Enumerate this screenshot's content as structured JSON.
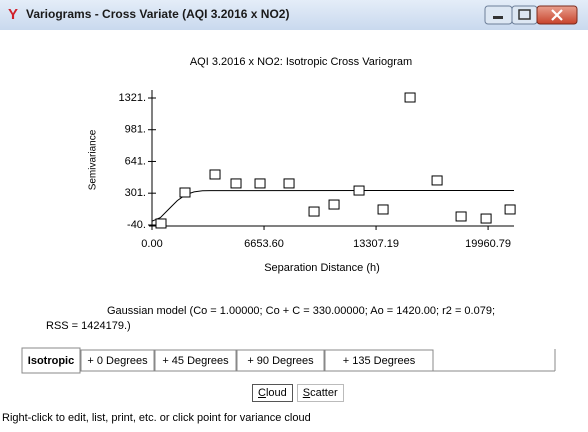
{
  "window": {
    "title": "Variograms - Cross Variate (AQI 3.2016 x NO2)"
  },
  "chart_data": {
    "type": "scatter",
    "title": "AQI 3.2016 x NO2: Isotropic Cross Variogram",
    "x_label": "Separation Distance (h)",
    "y_label": "Semivariance",
    "marker": "square",
    "x": [
      535,
      1960,
      3743,
      4990,
      6416,
      8139,
      9624,
      10812,
      12297,
      13723,
      15327,
      16931,
      18357,
      19842,
      21268
    ],
    "values": [
      -29,
      303,
      496,
      400,
      400,
      400,
      99,
      174,
      324,
      121,
      1321,
      432,
      46,
      24,
      121
    ],
    "model": {
      "x": [
        0,
        500,
        1000,
        1500,
        2000,
        2500,
        3000,
        3500,
        21500
      ],
      "values": [
        1,
        39,
        130,
        222,
        285,
        315,
        326,
        329,
        330
      ]
    },
    "xlim": [
      0,
      21500
    ],
    "ylim": [
      -40,
      1321
    ],
    "xticks": [
      {
        "value": 0,
        "label": "0.00"
      },
      {
        "value": 6653.6,
        "label": "6653.60"
      },
      13307.19,
      19960.79
    ],
    "yticks": [
      {
        "value": -40,
        "label": "-40."
      },
      {
        "value": 301,
        "label": "301."
      },
      {
        "value": 641,
        "label": "641."
      },
      {
        "value": 981,
        "label": "981."
      },
      {
        "value": 1321,
        "label": "1321."
      }
    ]
  },
  "model_text": [
    "Gaussian model (Co = 1.00000; Co + C = 330.00000; Ao = 1420.00; r2 = 0.079;",
    "RSS = 1424179.)"
  ],
  "tabs": [
    "Isotropic",
    "+ 0 Degrees",
    "+ 45 Degrees",
    "+ 90 Degrees",
    "+ 135 Degrees"
  ],
  "buttons": [
    "Cloud",
    "Scatter"
  ],
  "status": "Right-click to edit, list, print, etc. or click point for variance cloud"
}
